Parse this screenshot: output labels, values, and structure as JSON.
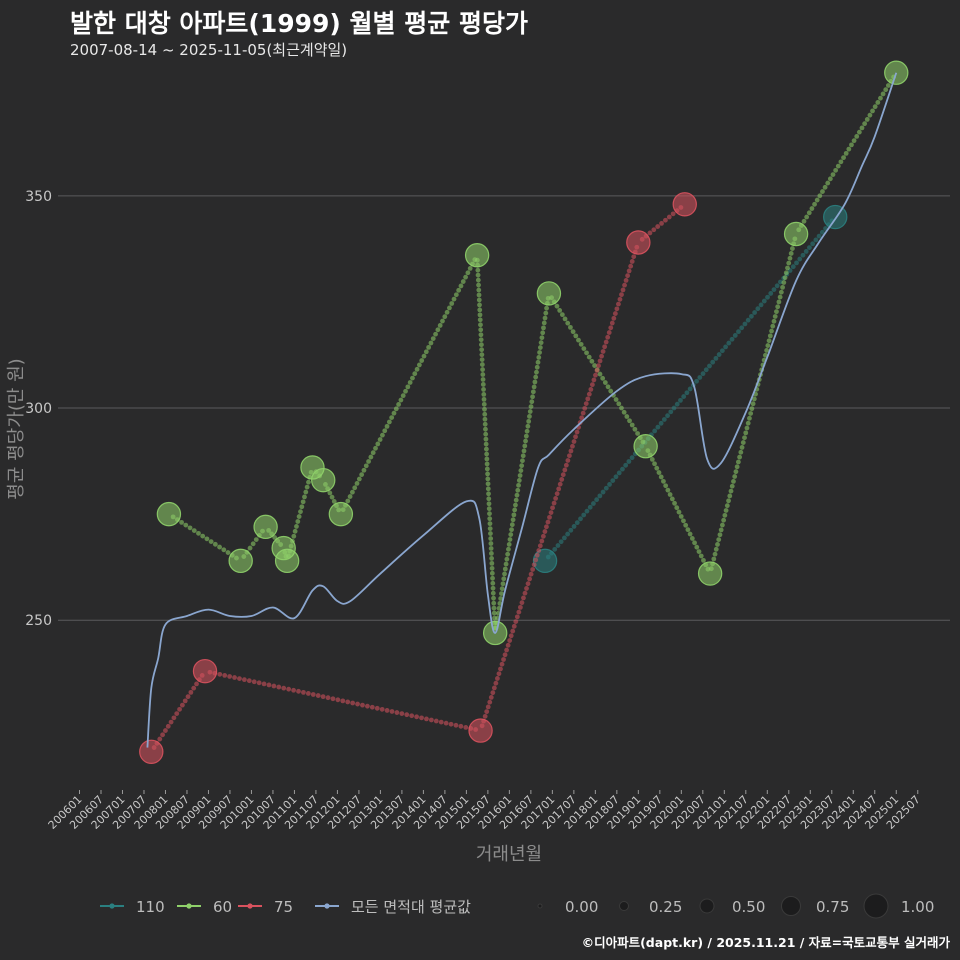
{
  "title": "발한 대창 아파트(1999) 월별 평균 평당가",
  "subtitle": "2007-08-14 ~ 2025-11-05(최근계약일)",
  "caption": "©디아파트(dapt.kr) / 2025.11.21 / 자료=국토교통부 실거래가",
  "chart_data": {
    "type": "line",
    "title": "발한 대창 아파트(1999) 월별 평균 평당가",
    "xlabel": "거래년월",
    "ylabel": "평균 평당가(만 원)",
    "ylim": [
      210,
      382
    ],
    "yticks": [
      250,
      300,
      350
    ],
    "x_tick_labels": [
      "200601",
      "200607",
      "200701",
      "200707",
      "200801",
      "200807",
      "200901",
      "200907",
      "201001",
      "201007",
      "201101",
      "201107",
      "201201",
      "201207",
      "201301",
      "201307",
      "201401",
      "201407",
      "201501",
      "201507",
      "201601",
      "201607",
      "201701",
      "201707",
      "201801",
      "201807",
      "201901",
      "201907",
      "202001",
      "202007",
      "202101",
      "202107",
      "202201",
      "202207",
      "202301",
      "202307",
      "202401",
      "202407",
      "202501",
      "202507"
    ],
    "series": [
      {
        "name": "110",
        "color": "#2a7f80",
        "points": [
          {
            "x": 2016.83,
            "y": 264,
            "size": 0.6
          },
          {
            "x": 2023.58,
            "y": 345,
            "size": 0.6
          }
        ]
      },
      {
        "name": "60",
        "color": "#8fd16a",
        "points": [
          {
            "x": 2008.08,
            "y": 275,
            "size": 0.6
          },
          {
            "x": 2009.75,
            "y": 264,
            "size": 0.6
          },
          {
            "x": 2010.33,
            "y": 272,
            "size": 0.6
          },
          {
            "x": 2010.75,
            "y": 267,
            "size": 0.6
          },
          {
            "x": 2010.83,
            "y": 264,
            "size": 0.6
          },
          {
            "x": 2011.42,
            "y": 286,
            "size": 0.6
          },
          {
            "x": 2011.67,
            "y": 283,
            "size": 0.6
          },
          {
            "x": 2012.08,
            "y": 275,
            "size": 0.6
          },
          {
            "x": 2015.25,
            "y": 336,
            "size": 0.6
          },
          {
            "x": 2015.67,
            "y": 247,
            "size": 0.6
          },
          {
            "x": 2016.92,
            "y": 327,
            "size": 0.6
          },
          {
            "x": 2019.17,
            "y": 291,
            "size": 0.6
          },
          {
            "x": 2020.67,
            "y": 261,
            "size": 0.6
          },
          {
            "x": 2022.67,
            "y": 341,
            "size": 0.6
          },
          {
            "x": 2025.0,
            "y": 379,
            "size": 0.6
          }
        ]
      },
      {
        "name": "75",
        "color": "#d9525e",
        "points": [
          {
            "x": 2007.67,
            "y": 219,
            "size": 0.6
          },
          {
            "x": 2008.92,
            "y": 238,
            "size": 0.6
          },
          {
            "x": 2015.33,
            "y": 224,
            "size": 0.6
          },
          {
            "x": 2019.0,
            "y": 339,
            "size": 0.6
          },
          {
            "x": 2020.08,
            "y": 348,
            "size": 0.6
          }
        ]
      },
      {
        "name": "모든 면적대 평균값",
        "color": "#8aa6cf",
        "type": "smooth",
        "points": [
          {
            "x": 2007.58,
            "y": 220
          },
          {
            "x": 2007.67,
            "y": 234
          },
          {
            "x": 2007.83,
            "y": 241
          },
          {
            "x": 2008.0,
            "y": 249
          },
          {
            "x": 2008.5,
            "y": 251
          },
          {
            "x": 2009.0,
            "y": 252.5
          },
          {
            "x": 2009.5,
            "y": 251
          },
          {
            "x": 2010.0,
            "y": 251
          },
          {
            "x": 2010.5,
            "y": 253
          },
          {
            "x": 2011.0,
            "y": 250.5
          },
          {
            "x": 2011.42,
            "y": 257
          },
          {
            "x": 2011.67,
            "y": 258
          },
          {
            "x": 2012.0,
            "y": 254.5
          },
          {
            "x": 2012.3,
            "y": 254.5
          },
          {
            "x": 2013.0,
            "y": 261
          },
          {
            "x": 2014.0,
            "y": 270
          },
          {
            "x": 2015.0,
            "y": 278
          },
          {
            "x": 2015.3,
            "y": 274
          },
          {
            "x": 2015.5,
            "y": 256
          },
          {
            "x": 2015.67,
            "y": 247
          },
          {
            "x": 2015.9,
            "y": 257
          },
          {
            "x": 2016.3,
            "y": 272
          },
          {
            "x": 2016.67,
            "y": 286
          },
          {
            "x": 2016.92,
            "y": 289
          },
          {
            "x": 2017.5,
            "y": 295
          },
          {
            "x": 2018.5,
            "y": 304
          },
          {
            "x": 2019.17,
            "y": 307.5
          },
          {
            "x": 2020.0,
            "y": 308
          },
          {
            "x": 2020.3,
            "y": 305
          },
          {
            "x": 2020.6,
            "y": 288
          },
          {
            "x": 2020.92,
            "y": 287
          },
          {
            "x": 2021.5,
            "y": 299
          },
          {
            "x": 2022.0,
            "y": 312
          },
          {
            "x": 2022.67,
            "y": 330
          },
          {
            "x": 2023.2,
            "y": 339
          },
          {
            "x": 2023.8,
            "y": 348
          },
          {
            "x": 2024.2,
            "y": 357
          },
          {
            "x": 2024.5,
            "y": 364
          },
          {
            "x": 2025.0,
            "y": 379
          }
        ]
      }
    ],
    "legend": {
      "position": "bottom",
      "series_labels": [
        "110",
        "60",
        "75",
        "모든 면적대 평균값"
      ],
      "size_labels": [
        "0.00",
        "0.25",
        "0.50",
        "0.75",
        "1.00"
      ],
      "size_values": [
        0,
        0.25,
        0.5,
        0.75,
        1
      ]
    }
  }
}
